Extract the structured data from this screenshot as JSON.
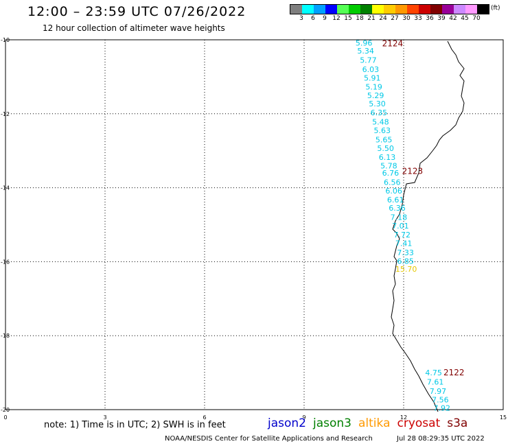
{
  "header": {
    "title": "12:00 – 23:59 UTC 07/26/2022",
    "subtitle": "12 hour collection of altimeter wave heights"
  },
  "color_scale": {
    "unit": "(ft)",
    "bins": [
      {
        "label": "3",
        "color": "#7f7f7f"
      },
      {
        "label": "6",
        "color": "#00ffff"
      },
      {
        "label": "9",
        "color": "#00a0ff"
      },
      {
        "label": "12",
        "color": "#0000ff"
      },
      {
        "label": "15",
        "color": "#55ff55"
      },
      {
        "label": "18",
        "color": "#00cc00"
      },
      {
        "label": "21",
        "color": "#008000"
      },
      {
        "label": "24",
        "color": "#ffff00"
      },
      {
        "label": "27",
        "color": "#ffcc00"
      },
      {
        "label": "30",
        "color": "#ff9900"
      },
      {
        "label": "33",
        "color": "#ff4400"
      },
      {
        "label": "36",
        "color": "#cc0000"
      },
      {
        "label": "39",
        "color": "#800000"
      },
      {
        "label": "42",
        "color": "#990099"
      },
      {
        "label": "45",
        "color": "#cc88ff"
      },
      {
        "label": "70",
        "color": "#ff99ff"
      },
      {
        "label": "",
        "color": "#000000"
      }
    ]
  },
  "map": {
    "lon_ticks": [
      "0",
      "3",
      "6",
      "9",
      "12",
      "15"
    ],
    "lat_ticks": [
      "-10",
      "-12",
      "-14",
      "-16",
      "-18",
      "-20"
    ],
    "colors": {
      "cyan": "#00c8e6",
      "yellow": "#e6c800",
      "time": "#800000",
      "coast": "#000000"
    },
    "time_labels": [
      {
        "text": "2124",
        "lon": 11.35,
        "lat": -10.1
      },
      {
        "text": "2123",
        "lon": 11.95,
        "lat": -13.55
      },
      {
        "text": "2122",
        "lon": 13.2,
        "lat": -19.0
      }
    ],
    "observations": [
      {
        "text": "5.96",
        "lon": 10.55,
        "lat": -10.08,
        "color": "cyan"
      },
      {
        "text": "5.34",
        "lon": 10.6,
        "lat": -10.3,
        "color": "cyan"
      },
      {
        "text": "5.77",
        "lon": 10.68,
        "lat": -10.55,
        "color": "cyan"
      },
      {
        "text": "6.03",
        "lon": 10.75,
        "lat": -10.8,
        "color": "cyan"
      },
      {
        "text": "5.91",
        "lon": 10.8,
        "lat": -11.03,
        "color": "cyan"
      },
      {
        "text": "5.19",
        "lon": 10.85,
        "lat": -11.27,
        "color": "cyan"
      },
      {
        "text": "5.29",
        "lon": 10.9,
        "lat": -11.5,
        "color": "cyan"
      },
      {
        "text": "5.30",
        "lon": 10.95,
        "lat": -11.73,
        "color": "cyan"
      },
      {
        "text": "6.35",
        "lon": 11.0,
        "lat": -11.97,
        "color": "cyan"
      },
      {
        "text": "5.48",
        "lon": 11.05,
        "lat": -12.22,
        "color": "cyan"
      },
      {
        "text": "5.63",
        "lon": 11.1,
        "lat": -12.45,
        "color": "cyan"
      },
      {
        "text": "5.65",
        "lon": 11.15,
        "lat": -12.7,
        "color": "cyan"
      },
      {
        "text": "5.50",
        "lon": 11.2,
        "lat": -12.93,
        "color": "cyan"
      },
      {
        "text": "6.13",
        "lon": 11.25,
        "lat": -13.17,
        "color": "cyan"
      },
      {
        "text": "5.78",
        "lon": 11.3,
        "lat": -13.4,
        "color": "cyan"
      },
      {
        "text": "6.76",
        "lon": 11.35,
        "lat": -13.6,
        "color": "cyan"
      },
      {
        "text": "6.56",
        "lon": 11.4,
        "lat": -13.85,
        "color": "cyan"
      },
      {
        "text": "6.06",
        "lon": 11.45,
        "lat": -14.08,
        "color": "cyan"
      },
      {
        "text": "6.61",
        "lon": 11.5,
        "lat": -14.32,
        "color": "cyan"
      },
      {
        "text": "6.36",
        "lon": 11.55,
        "lat": -14.55,
        "color": "cyan"
      },
      {
        "text": "7.18",
        "lon": 11.6,
        "lat": -14.8,
        "color": "cyan"
      },
      {
        "text": "7.01",
        "lon": 11.65,
        "lat": -15.03,
        "color": "cyan"
      },
      {
        "text": "7.72",
        "lon": 11.7,
        "lat": -15.27,
        "color": "cyan"
      },
      {
        "text": "7.41",
        "lon": 11.75,
        "lat": -15.5,
        "color": "cyan"
      },
      {
        "text": "7.33",
        "lon": 11.8,
        "lat": -15.75,
        "color": "cyan"
      },
      {
        "text": "6.85",
        "lon": 11.8,
        "lat": -15.98,
        "color": "cyan"
      },
      {
        "text": "15.70",
        "lon": 11.75,
        "lat": -16.2,
        "color": "yellow"
      },
      {
        "text": "4.75",
        "lon": 12.65,
        "lat": -19.0,
        "color": "cyan"
      },
      {
        "text": "7.61",
        "lon": 12.7,
        "lat": -19.25,
        "color": "cyan"
      },
      {
        "text": "7.97",
        "lon": 12.78,
        "lat": -19.5,
        "color": "cyan"
      },
      {
        "text": "7.56",
        "lon": 12.85,
        "lat": -19.73,
        "color": "cyan"
      },
      {
        "text": "7.92",
        "lon": 12.9,
        "lat": -19.95,
        "color": "cyan"
      }
    ]
  },
  "footer": {
    "note": "note: 1) Time is in UTC; 2) SWH is in feet",
    "satellites": [
      {
        "name": "jason2",
        "color": "#0000cc"
      },
      {
        "name": "jason3",
        "color": "#008000"
      },
      {
        "name": "altika",
        "color": "#ff9900"
      },
      {
        "name": "cryosat",
        "color": "#cc0000"
      },
      {
        "name": "s3a",
        "color": "#800000"
      }
    ],
    "credit": "NOAA/NESDIS Center for Satellite Applications and Research",
    "timestamp": "Jul 28 08:29:35 UTC 2022"
  }
}
